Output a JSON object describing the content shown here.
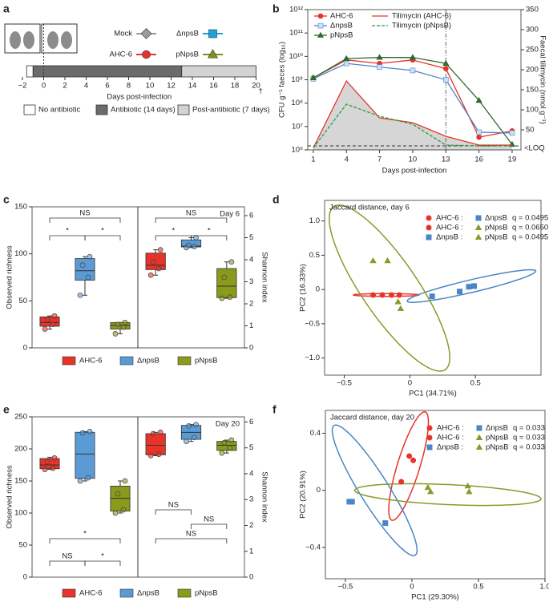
{
  "chart_data": [
    {
      "type": "timeline",
      "panel": "a",
      "groups": [
        {
          "name": "Mock",
          "color": "#9a9a9a",
          "marker": "diamond"
        },
        {
          "name": "ΔnpsB",
          "color": "#1ca3dc",
          "marker": "square"
        },
        {
          "name": "AHC-6",
          "color": "#e8332a",
          "marker": "circle"
        },
        {
          "name": "pNpsB",
          "color": "#7d8f1f",
          "marker": "triangle"
        }
      ],
      "segments": [
        {
          "name": "No antibiotic",
          "color": "#ffffff",
          "start": -1.6,
          "end": -1
        },
        {
          "name": "Antibiotic (14 days)",
          "color": "#6b6b6b",
          "start": -1,
          "end": 13
        },
        {
          "name": "Post-antibiotic (7 days)",
          "color": "#d3d3d3",
          "start": 13,
          "end": 20
        }
      ],
      "infection_day": 0,
      "end_label": "†",
      "xlabel": "Days post-infection",
      "xlim": [
        -2,
        20
      ],
      "xticks": [
        {
          "value": -2,
          "label": "−2"
        },
        0,
        2,
        4,
        6,
        8,
        10,
        12,
        14,
        16,
        18,
        20
      ]
    },
    {
      "type": "line",
      "panel": "b",
      "xlabel": "Days post-infection",
      "ylabel": "CFU g⁻¹ faeces (log₁₀)",
      "y2label": "Faecal tilimycin (nmol g⁻¹)",
      "x": [
        1,
        4,
        7,
        10,
        13,
        16,
        19
      ],
      "xlim": [
        0.5,
        19.8
      ],
      "xticks": [
        1,
        4,
        7,
        10,
        13,
        16,
        19
      ],
      "ylog": true,
      "ylim": [
        1000000,
        1000000000000
      ],
      "yticks": [
        {
          "value": 1000000,
          "label": "10⁶"
        },
        {
          "value": 10000000,
          "label": "10⁷"
        },
        {
          "value": 100000000,
          "label": "10⁸"
        },
        {
          "value": 1000000000,
          "label": "10⁹"
        },
        {
          "value": 10000000000,
          "label": "10¹⁰"
        },
        {
          "value": 100000000000,
          "label": "10¹¹"
        },
        {
          "value": 1000000000000,
          "label": "10¹²"
        }
      ],
      "y2lim": [
        0,
        350
      ],
      "y2ticks": [
        50,
        100,
        150,
        200,
        250,
        300,
        350
      ],
      "legend": "upper left",
      "series": [
        {
          "name": "AHC-6",
          "color": "#e8332a",
          "marker": "circle",
          "values": [
            1200000000,
            7000000000,
            5000000000,
            7000000000,
            3000000000,
            3500000,
            6500000
          ]
        },
        {
          "name": "ΔnpsB",
          "color": "#4a86c5",
          "marker": "square",
          "values": [
            1100000000,
            5000000000,
            3500000000,
            2500000000,
            1000000000,
            5700000,
            5300000
          ]
        },
        {
          "name": "pNpsB",
          "color": "#2e6b2e",
          "marker": "triangle",
          "values": [
            1200000000,
            8000000000,
            9000000000,
            9000000000,
            5000000000,
            130000000,
            1700000
          ]
        },
        {
          "name": "Tilimycin (AHC-6)",
          "color": "#e8332a",
          "axis": "y2",
          "fill": "#d6d6d6",
          "values": [
            5,
            172,
            80,
            68,
            34,
            12,
            12
          ]
        },
        {
          "name": "Tilimycin (pNpsB)",
          "color": "#2e9b3a",
          "axis": "y2",
          "dash": true,
          "values": [
            5,
            114,
            84,
            64,
            12,
            10,
            10
          ]
        }
      ],
      "loq": {
        "value": 10,
        "label": "<LOQ"
      },
      "vline": 13
    },
    {
      "type": "box",
      "panel": "c",
      "day_label": "Day 6",
      "categories": [
        "AHC-6",
        "ΔnpsB",
        "pNpsB"
      ],
      "colors": [
        "#e8332a",
        "#5b9bd5",
        "#8a9a1a"
      ],
      "left": {
        "ylabel": "Observed richness",
        "ylim": [
          0,
          150
        ],
        "yticks": [
          0,
          50,
          100,
          150
        ],
        "boxes": [
          {
            "whislo": 20,
            "q1": 23,
            "med": 27,
            "q3": 33,
            "whishi": 34,
            "points": [
              20,
              25,
              30,
              34
            ]
          },
          {
            "whislo": 56,
            "q1": 72,
            "med": 82,
            "q3": 95,
            "whishi": 97,
            "points": [
              56,
              75,
              88,
              97
            ]
          },
          {
            "whislo": 15,
            "q1": 20,
            "med": 24,
            "q3": 27,
            "whishi": 27,
            "points": [
              15,
              22,
              25,
              27
            ]
          }
        ],
        "significance": [
          "NS",
          "*",
          "*"
        ]
      },
      "right": {
        "ylabel": "Shannon index",
        "ylim": [
          0,
          6.4
        ],
        "yticks": [
          0,
          1,
          2,
          3,
          4,
          5,
          6
        ],
        "boxes": [
          {
            "whislo": 3.3,
            "q1": 3.55,
            "med": 3.75,
            "q3": 4.3,
            "whishi": 4.45,
            "points": [
              3.3,
              3.6,
              3.9,
              4.45
            ]
          },
          {
            "whislo": 4.55,
            "q1": 4.58,
            "med": 4.62,
            "q3": 4.9,
            "whishi": 5.0,
            "points": [
              4.55,
              4.6,
              4.65,
              5.0
            ]
          },
          {
            "whislo": 2.25,
            "q1": 2.28,
            "med": 2.8,
            "q3": 3.6,
            "whishi": 3.9,
            "points": [
              2.25,
              2.3,
              3.2,
              3.9
            ]
          }
        ],
        "significance": [
          "NS",
          "*",
          "*"
        ]
      }
    },
    {
      "type": "scatter",
      "panel": "d",
      "title": "Jaccard distance, day 6",
      "xlabel": "PC1 (34.71%)",
      "ylabel": "PC2 (16.33%)",
      "xlim": [
        -0.65,
        1.0
      ],
      "xticks": [
        {
          "value": -0.5,
          "label": "−0.5"
        },
        0,
        0.5
      ],
      "ylim": [
        -1.25,
        1.3
      ],
      "yticks": [
        {
          "value": -1,
          "label": "−1.0"
        },
        {
          "value": -0.5,
          "label": "−0.5"
        },
        0,
        0.5,
        {
          "value": 1,
          "label": "1.0"
        }
      ],
      "series": [
        {
          "name": "AHC-6",
          "color": "#e8332a",
          "marker": "circle",
          "x": [
            -0.28,
            -0.21,
            -0.14,
            -0.08
          ],
          "y": [
            -0.08,
            -0.08,
            -0.08,
            -0.08
          ],
          "ellipse": {
            "center": [
              -0.18,
              -0.08
            ],
            "major": [
              0.07,
              -0.08
            ],
            "minor": [
              -0.18,
              -0.06
            ]
          }
        },
        {
          "name": "ΔnpsB",
          "color": "#4a86c5",
          "marker": "square",
          "x": [
            0.17,
            0.38,
            0.45,
            0.49
          ],
          "y": [
            -0.1,
            -0.03,
            0.04,
            0.05
          ],
          "ellipse": {
            "center": [
              0.47,
              0.05
            ],
            "major": [
              0.96,
              0.27
            ],
            "minor": [
              0.48,
              -0.04
            ]
          }
        },
        {
          "name": "pNpsB",
          "color": "#8a9a2a",
          "marker": "triangle",
          "x": [
            -0.28,
            -0.17,
            -0.09,
            -0.07
          ],
          "y": [
            0.42,
            0.42,
            -0.18,
            -0.28
          ],
          "ellipse": {
            "center": [
              -0.155,
              0.02
            ],
            "major": [
              -0.58,
              1.21
            ],
            "minor": [
              0.02,
              0.25
            ]
          }
        }
      ],
      "comparisons": [
        {
          "a": "AHC-6 :",
          "b": "ΔnpsB",
          "q": "q = 0.0495"
        },
        {
          "a": "AHC-6 :",
          "b": "pNpsB",
          "q": "q = 0.0650"
        },
        {
          "a": "ΔnpsB :",
          "b": "pNpsB",
          "q": "q = 0.0495"
        }
      ]
    },
    {
      "type": "box",
      "panel": "e",
      "day_label": "Day 20",
      "categories": [
        "AHC-6",
        "ΔnpsB",
        "pNpsB"
      ],
      "colors": [
        "#e8332a",
        "#5b9bd5",
        "#8a9a1a"
      ],
      "left": {
        "ylabel": "Observed richness",
        "ylim": [
          0,
          250
        ],
        "yticks": [
          0,
          50,
          100,
          150,
          200,
          250
        ],
        "boxes": [
          {
            "whislo": 168,
            "q1": 169,
            "med": 175,
            "q3": 185,
            "whishi": 187,
            "points": [
              168,
              170,
              180,
              186
            ]
          },
          {
            "whislo": 150,
            "q1": 154,
            "med": 192,
            "q3": 226,
            "whishi": 227,
            "points": [
              150,
              155,
              225,
              227
            ]
          },
          {
            "whislo": 100,
            "q1": 103,
            "med": 123,
            "q3": 142,
            "whishi": 150,
            "points": [
              100,
              105,
              130,
              150
            ]
          }
        ],
        "significance": [
          "*",
          "NS",
          "*"
        ]
      },
      "right": {
        "ylabel": "Shannon index",
        "ylim": [
          0,
          6.2
        ],
        "yticks": [
          0,
          1,
          2,
          3,
          4,
          5,
          6
        ],
        "boxes": [
          {
            "whislo": 4.7,
            "q1": 4.73,
            "med": 5.1,
            "q3": 5.55,
            "whishi": 5.6,
            "points": [
              4.7,
              4.75,
              5.55,
              5.6
            ]
          },
          {
            "whislo": 5.25,
            "q1": 5.33,
            "med": 5.6,
            "q3": 5.87,
            "whishi": 5.9,
            "points": [
              5.25,
              5.4,
              5.85,
              5.9
            ]
          },
          {
            "whislo": 4.8,
            "q1": 4.9,
            "med": 5.1,
            "q3": 5.25,
            "whishi": 5.3,
            "points": [
              4.8,
              5.0,
              5.2,
              5.3
            ]
          }
        ],
        "significance": [
          "NS",
          "NS",
          "NS"
        ]
      }
    },
    {
      "type": "scatter",
      "panel": "f",
      "title": "Jaccard distance, day 20",
      "xlabel": "PC1 (29.30%)",
      "ylabel": "PC2 (20.91%)",
      "xlim": [
        -0.65,
        1.0
      ],
      "xticks": [
        {
          "value": -0.5,
          "label": "−0.5"
        },
        0,
        0.5,
        {
          "value": 1,
          "label": "1.0"
        }
      ],
      "ylim": [
        -0.62,
        0.56
      ],
      "yticks": [
        {
          "value": -0.4,
          "label": "−0.4"
        },
        0,
        0.4
      ],
      "series": [
        {
          "name": "AHC-6",
          "color": "#e8332a",
          "marker": "circle",
          "x": [
            -0.08,
            -0.02,
            0.01
          ],
          "y": [
            0.06,
            0.24,
            0.21
          ],
          "ellipse": {
            "center": [
              -0.025,
              0.17
            ],
            "major": [
              0.1,
              0.55
            ],
            "minor": [
              0.056,
              0.148
            ]
          }
        },
        {
          "name": "ΔnpsB",
          "color": "#4a86c5",
          "marker": "square",
          "x": [
            -0.47,
            -0.45,
            -0.2
          ],
          "y": [
            -0.08,
            -0.08,
            -0.23
          ],
          "ellipse": {
            "center": [
              -0.28,
              0.0
            ],
            "major": [
              -0.585,
              0.455
            ],
            "minor": [
              -0.187,
              0.052
            ]
          }
        },
        {
          "name": "pNpsB",
          "color": "#8a9a2a",
          "marker": "triangle",
          "x": [
            0.12,
            0.14,
            0.42,
            0.43
          ],
          "y": [
            0.02,
            -0.01,
            0.03,
            -0.01
          ],
          "ellipse": {
            "center": [
              0.27,
              -0.03
            ],
            "major": [
              0.97,
              -0.06
            ],
            "minor": [
              0.275,
              0.04
            ]
          }
        }
      ],
      "comparisons": [
        {
          "a": "AHC-6 :",
          "b": "ΔnpsB",
          "q": "q = 0.033"
        },
        {
          "a": "AHC-6 :",
          "b": "pNpsB",
          "q": "q = 0.033"
        },
        {
          "a": "ΔnpsB :",
          "b": "pNpsB",
          "q": "q = 0.033"
        }
      ]
    }
  ]
}
